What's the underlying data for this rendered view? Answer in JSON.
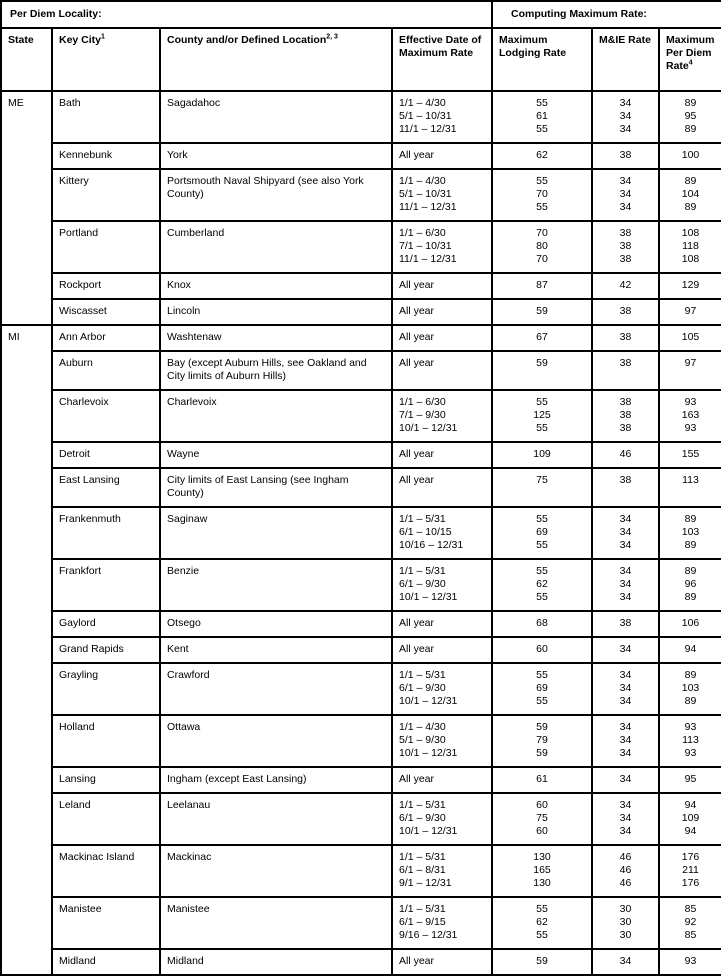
{
  "header": {
    "band_left": "Per Diem Locality:",
    "band_right": "Computing Maximum Rate:",
    "columns": [
      {
        "label": "State",
        "sup": ""
      },
      {
        "label": "Key City",
        "sup": "1"
      },
      {
        "label": "County and/or Defined Location",
        "sup": "2, 3"
      },
      {
        "label": "Effective Date of Maximum Rate",
        "sup": ""
      },
      {
        "label": "Maximum Lodging Rate",
        "sup": ""
      },
      {
        "label": "M&IE Rate",
        "sup": ""
      },
      {
        "label": "Maximum Per Diem Rate",
        "sup": "4"
      }
    ]
  },
  "states": [
    {
      "state": "ME",
      "rows": [
        {
          "city": "Bath",
          "county": "Sagadahoc",
          "dates": [
            "1/1 – 4/30",
            "5/1 – 10/31",
            "11/1 – 12/31"
          ],
          "lodging": [
            "55",
            "61",
            "55"
          ],
          "mie": [
            "34",
            "34",
            "34"
          ],
          "max": [
            "89",
            "95",
            "89"
          ]
        },
        {
          "city": "Kennebunk",
          "county": "York",
          "dates": [
            "All year"
          ],
          "lodging": [
            "62"
          ],
          "mie": [
            "38"
          ],
          "max": [
            "100"
          ]
        },
        {
          "city": "Kittery",
          "county": "Portsmouth Naval Shipyard (see also York County)",
          "dates": [
            "1/1 – 4/30",
            "5/1 – 10/31",
            "11/1 – 12/31"
          ],
          "lodging": [
            "55",
            "70",
            "55"
          ],
          "mie": [
            "34",
            "34",
            "34"
          ],
          "max": [
            "89",
            "104",
            "89"
          ]
        },
        {
          "city": "Portland",
          "county": "Cumberland",
          "dates": [
            "1/1 – 6/30",
            "7/1 – 10/31",
            "11/1 – 12/31"
          ],
          "lodging": [
            "70",
            "80",
            "70"
          ],
          "mie": [
            "38",
            "38",
            "38"
          ],
          "max": [
            "108",
            "118",
            "108"
          ]
        },
        {
          "city": "Rockport",
          "county": "Knox",
          "dates": [
            "All year"
          ],
          "lodging": [
            "87"
          ],
          "mie": [
            "42"
          ],
          "max": [
            "129"
          ]
        },
        {
          "city": "Wiscasset",
          "county": "Lincoln",
          "dates": [
            "All year"
          ],
          "lodging": [
            "59"
          ],
          "mie": [
            "38"
          ],
          "max": [
            "97"
          ]
        }
      ]
    },
    {
      "state": "MI",
      "rows": [
        {
          "city": "Ann Arbor",
          "county": "Washtenaw",
          "dates": [
            "All year"
          ],
          "lodging": [
            "67"
          ],
          "mie": [
            "38"
          ],
          "max": [
            "105"
          ]
        },
        {
          "city": "Auburn",
          "county": "Bay (except Auburn Hills, see Oakland and City limits of Auburn Hills)",
          "dates": [
            "All year"
          ],
          "lodging": [
            "59"
          ],
          "mie": [
            "38"
          ],
          "max": [
            "97"
          ]
        },
        {
          "city": "Charlevoix",
          "county": "Charlevoix",
          "dates": [
            "1/1 – 6/30",
            "7/1 – 9/30",
            "10/1 – 12/31"
          ],
          "lodging": [
            "55",
            "125",
            "55"
          ],
          "mie": [
            "38",
            "38",
            "38"
          ],
          "max": [
            "93",
            "163",
            "93"
          ]
        },
        {
          "city": "Detroit",
          "county": "Wayne",
          "dates": [
            "All year"
          ],
          "lodging": [
            "109"
          ],
          "mie": [
            "46"
          ],
          "max": [
            "155"
          ]
        },
        {
          "city": "East Lansing",
          "county": "City limits of East Lansing (see Ingham County)",
          "dates": [
            "All year"
          ],
          "lodging": [
            "75"
          ],
          "mie": [
            "38"
          ],
          "max": [
            "113"
          ]
        },
        {
          "city": "Frankenmuth",
          "county": "Saginaw",
          "dates": [
            "1/1 – 5/31",
            "6/1 – 10/15",
            "10/16 – 12/31"
          ],
          "lodging": [
            "55",
            "69",
            "55"
          ],
          "mie": [
            "34",
            "34",
            "34"
          ],
          "max": [
            "89",
            "103",
            "89"
          ]
        },
        {
          "city": "Frankfort",
          "county": "Benzie",
          "dates": [
            "1/1 – 5/31",
            "6/1 – 9/30",
            "10/1 – 12/31"
          ],
          "lodging": [
            "55",
            "62",
            "55"
          ],
          "mie": [
            "34",
            "34",
            "34"
          ],
          "max": [
            "89",
            "96",
            "89"
          ]
        },
        {
          "city": "Gaylord",
          "county": "Otsego",
          "dates": [
            "All year"
          ],
          "lodging": [
            "68"
          ],
          "mie": [
            "38"
          ],
          "max": [
            "106"
          ]
        },
        {
          "city": "Grand Rapids",
          "county": "Kent",
          "dates": [
            "All year"
          ],
          "lodging": [
            "60"
          ],
          "mie": [
            "34"
          ],
          "max": [
            "94"
          ]
        },
        {
          "city": "Grayling",
          "county": "Crawford",
          "dates": [
            "1/1 – 5/31",
            "6/1 – 9/30",
            "10/1 – 12/31"
          ],
          "lodging": [
            "55",
            "69",
            "55"
          ],
          "mie": [
            "34",
            "34",
            "34"
          ],
          "max": [
            "89",
            "103",
            "89"
          ]
        },
        {
          "city": "Holland",
          "county": "Ottawa",
          "dates": [
            "1/1 – 4/30",
            "5/1 – 9/30",
            "10/1 – 12/31"
          ],
          "lodging": [
            "59",
            "79",
            "59"
          ],
          "mie": [
            "34",
            "34",
            "34"
          ],
          "max": [
            "93",
            "113",
            "93"
          ]
        },
        {
          "city": "Lansing",
          "county": "Ingham (except East Lansing)",
          "dates": [
            "All year"
          ],
          "lodging": [
            "61"
          ],
          "mie": [
            "34"
          ],
          "max": [
            "95"
          ]
        },
        {
          "city": "Leland",
          "county": "Leelanau",
          "dates": [
            "1/1 – 5/31",
            "6/1 – 9/30",
            "10/1 – 12/31"
          ],
          "lodging": [
            "60",
            "75",
            "60"
          ],
          "mie": [
            "34",
            "34",
            "34"
          ],
          "max": [
            "94",
            "109",
            "94"
          ]
        },
        {
          "city": "Mackinac Island",
          "county": "Mackinac",
          "dates": [
            "1/1 – 5/31",
            "6/1 – 8/31",
            "9/1 – 12/31"
          ],
          "lodging": [
            "130",
            "165",
            "130"
          ],
          "mie": [
            "46",
            "46",
            "46"
          ],
          "max": [
            "176",
            "211",
            "176"
          ]
        },
        {
          "city": "Manistee",
          "county": "Manistee",
          "dates": [
            "1/1 – 5/31",
            "6/1 – 9/15",
            "9/16 – 12/31"
          ],
          "lodging": [
            "55",
            "62",
            "55"
          ],
          "mie": [
            "30",
            "30",
            "30"
          ],
          "max": [
            "85",
            "92",
            "85"
          ]
        },
        {
          "city": "Midland",
          "county": "Midland",
          "dates": [
            "All year"
          ],
          "lodging": [
            "59"
          ],
          "mie": [
            "34"
          ],
          "max": [
            "93"
          ]
        }
      ]
    }
  ]
}
